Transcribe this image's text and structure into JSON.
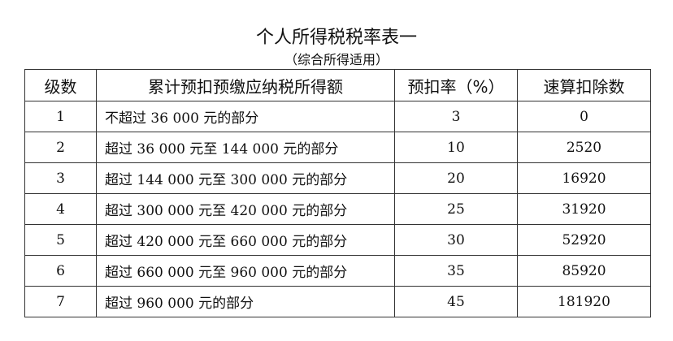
{
  "title": "个人所得税税率表一",
  "subtitle": "（综合所得适用）",
  "headers": [
    "级数",
    "累计预扣预缴应纳税所得额",
    "预扣率（%）",
    "速算扣除数"
  ],
  "rows": [
    [
      "1",
      "不超过 36 000 元的部分",
      "3",
      "0"
    ],
    [
      "2",
      "超过 36 000 元至 144 000 元的部分",
      "10",
      "2520"
    ],
    [
      "3",
      "超过 144 000 元至 300 000 元的部分",
      "20",
      "16920"
    ],
    [
      "4",
      "超过 300 000 元至 420 000 元的部分",
      "25",
      "31920"
    ],
    [
      "5",
      "超过 420 000 元至 660 000 元的部分",
      "30",
      "52920"
    ],
    [
      "6",
      "超过 660 000 元至 960 000 元的部分",
      "35",
      "85920"
    ],
    [
      "7",
      "超过 960 000 元的部分",
      "45",
      "181920"
    ]
  ]
}
